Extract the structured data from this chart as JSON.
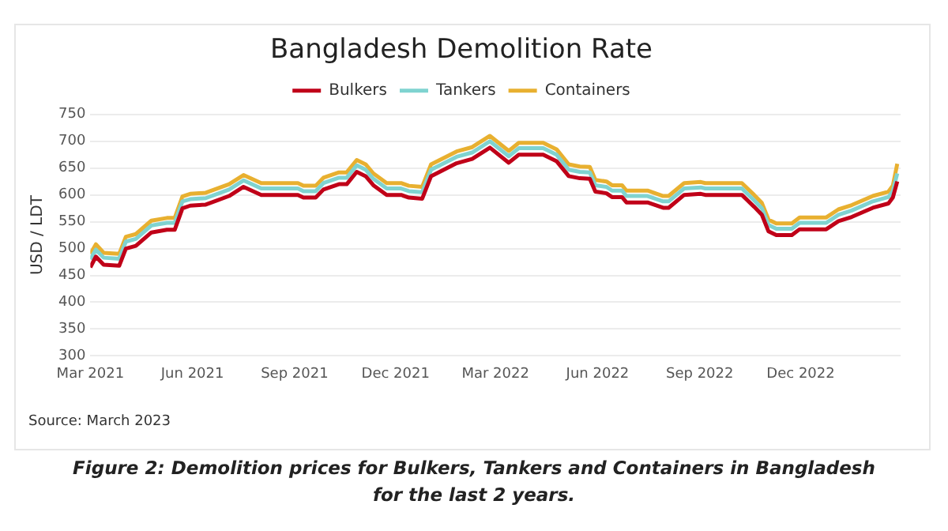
{
  "chart_data": {
    "type": "line",
    "title": "Bangladesh Demolition Rate",
    "ylabel": "USD / LDT",
    "annotations": [
      "Source: March 2023",
      "Figure 2: Demolition prices for Bulkers, Tankers and Containers in Bangladesh for the last 2 years."
    ],
    "x": [
      "2021-03-01",
      "2021-03-06",
      "2021-03-13",
      "2021-03-27",
      "2021-04-02",
      "2021-04-11",
      "2021-04-25",
      "2021-05-09",
      "2021-05-16",
      "2021-05-23",
      "2021-05-30",
      "2021-06-13",
      "2021-07-04",
      "2021-07-17",
      "2021-08-02",
      "2021-09-04",
      "2021-09-09",
      "2021-09-20",
      "2021-09-27",
      "2021-10-11",
      "2021-10-18",
      "2021-10-27",
      "2021-11-04",
      "2021-11-11",
      "2021-11-23",
      "2021-12-06",
      "2021-12-13",
      "2021-12-25",
      "2022-01-02",
      "2022-01-25",
      "2022-02-08",
      "2022-02-24",
      "2022-03-13",
      "2022-03-22",
      "2022-04-13",
      "2022-04-25",
      "2022-05-06",
      "2022-05-16",
      "2022-05-25",
      "2022-05-30",
      "2022-06-09",
      "2022-06-14",
      "2022-06-23",
      "2022-06-27",
      "2022-07-16",
      "2022-07-30",
      "2022-08-04",
      "2022-08-18",
      "2022-09-02",
      "2022-09-06",
      "2022-10-09",
      "2022-10-20",
      "2022-10-27",
      "2022-11-02",
      "2022-11-09",
      "2022-11-23",
      "2022-11-30",
      "2022-12-24",
      "2023-01-04",
      "2023-01-16",
      "2023-02-04",
      "2023-02-18",
      "2023-02-22",
      "2023-02-26"
    ],
    "series": [
      {
        "name": "Bulkers",
        "color": "#c00018",
        "values": [
          465,
          485,
          470,
          468,
          500,
          505,
          530,
          535,
          535,
          575,
          580,
          582,
          598,
          615,
          600,
          600,
          595,
          595,
          610,
          620,
          620,
          643,
          635,
          618,
          600,
          600,
          595,
          593,
          635,
          659,
          667,
          688,
          660,
          675,
          675,
          663,
          635,
          631,
          630,
          606,
          603,
          596,
          596,
          586,
          586,
          576,
          576,
          600,
          602,
          600,
          600,
          578,
          563,
          532,
          525,
          525,
          536,
          536,
          551,
          559,
          576,
          584,
          595,
          625
        ]
      },
      {
        "name": "Tankers",
        "color": "#7fd3d0",
        "values": [
          480,
          498,
          483,
          481,
          513,
          518,
          543,
          548,
          548,
          588,
          592,
          594,
          610,
          627,
          612,
          612,
          607,
          607,
          622,
          632,
          632,
          655,
          647,
          630,
          612,
          612,
          607,
          605,
          647,
          671,
          679,
          700,
          672,
          687,
          687,
          675,
          647,
          643,
          642,
          618,
          615,
          608,
          608,
          598,
          598,
          588,
          588,
          612,
          614,
          612,
          612,
          590,
          575,
          544,
          537,
          537,
          548,
          548,
          563,
          571,
          588,
          596,
          607,
          640
        ]
      },
      {
        "name": "Containers",
        "color": "#e8b030",
        "values": [
          490,
          508,
          492,
          490,
          522,
          527,
          552,
          557,
          557,
          597,
          602,
          604,
          620,
          637,
          622,
          622,
          617,
          617,
          632,
          642,
          642,
          665,
          657,
          640,
          622,
          622,
          617,
          615,
          657,
          681,
          689,
          710,
          682,
          697,
          697,
          685,
          657,
          653,
          652,
          628,
          625,
          618,
          618,
          608,
          608,
          598,
          598,
          622,
          624,
          622,
          622,
          600,
          585,
          554,
          547,
          547,
          558,
          558,
          573,
          581,
          598,
          606,
          617,
          658
        ]
      }
    ],
    "xlim": [
      "2021-03",
      "2023-03"
    ],
    "xticks": [
      {
        "value": "2021-03",
        "label": "Mar 2021"
      },
      {
        "value": "2021-06",
        "label": "Jun 2021"
      },
      {
        "value": "2021-09",
        "label": "Sep 2021"
      },
      {
        "value": "2021-12",
        "label": "Dec 2021"
      },
      {
        "value": "2022-03",
        "label": "Mar 2022"
      },
      {
        "value": "2022-06",
        "label": "Jun 2022"
      },
      {
        "value": "2022-09",
        "label": "Sep 2022"
      },
      {
        "value": "2022-12",
        "label": "Dec 2022"
      }
    ],
    "ylim": [
      300,
      750
    ],
    "yticks": [
      300,
      350,
      400,
      450,
      500,
      550,
      600,
      650,
      700,
      750
    ],
    "grid": "y",
    "legend": "top",
    "marker": "none",
    "line_style": "solid"
  }
}
